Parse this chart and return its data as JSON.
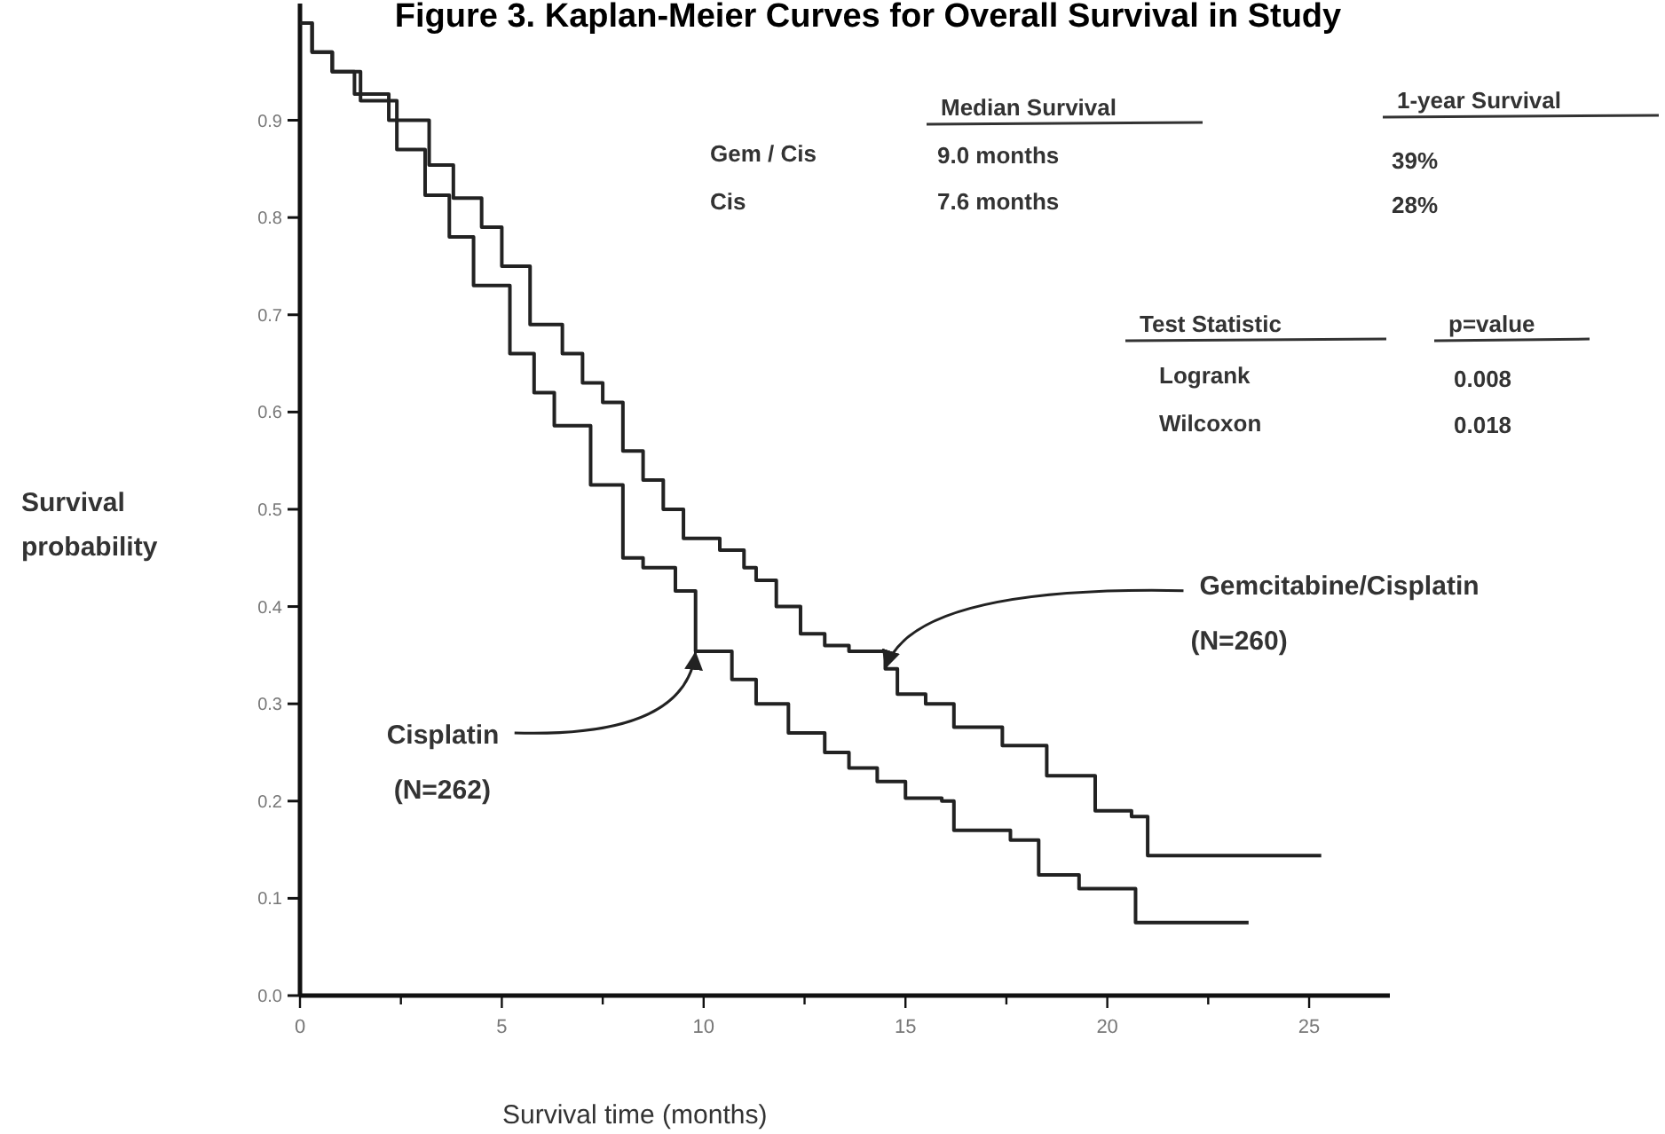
{
  "chart_data": {
    "type": "step",
    "title": "Figure 3. Kaplan-Meier Curves for Overall Survival in Study",
    "xlabel": "Survival time (months)",
    "ylabel": "Survival probability",
    "xlim": [
      0,
      27
    ],
    "ylim": [
      0,
      1.02
    ],
    "xticks": [
      0,
      {
        "value": 2.5,
        "label": null
      },
      5,
      {
        "value": 7.5,
        "label": null
      },
      10,
      {
        "value": 12.5,
        "label": null
      },
      15,
      {
        "value": 17.5,
        "label": null
      },
      20,
      {
        "value": 22.5,
        "label": null
      },
      25
    ],
    "yticks": [
      {
        "value": 0,
        "label": "0.0"
      },
      0.1,
      0.2,
      0.3,
      0.4,
      0.5,
      0.6,
      0.7,
      0.8,
      0.9
    ],
    "grid": false,
    "line_style": "solid",
    "marker": "none",
    "series": [
      {
        "color": "#222222",
        "x": [
          0,
          0.3,
          0.8,
          1.35,
          2.2,
          3.2,
          3.8,
          4.5,
          5.0,
          5.7,
          6.0,
          6.5,
          7.0,
          7.5,
          8.0,
          8.5,
          9.0,
          9.5,
          10.4,
          11.0,
          11.3,
          11.8,
          12.4,
          13.0,
          13.6,
          14.5,
          14.8,
          15.5,
          16.2,
          17.4,
          18.5,
          19.7,
          20.6,
          21.0,
          25.3
        ],
        "values": [
          1.0,
          0.97,
          0.95,
          0.927,
          0.9,
          0.854,
          0.82,
          0.79,
          0.75,
          0.69,
          0.69,
          0.66,
          0.63,
          0.61,
          0.56,
          0.53,
          0.5,
          0.47,
          0.458,
          0.44,
          0.427,
          0.4,
          0.372,
          0.36,
          0.354,
          0.336,
          0.31,
          0.3,
          0.276,
          0.257,
          0.226,
          0.19,
          0.184,
          0.144,
          0.144
        ]
      },
      {
        "color": "#222222",
        "x": [
          0,
          0.3,
          0.8,
          1.5,
          2.4,
          3.1,
          3.7,
          4.3,
          5.2,
          5.8,
          6.3,
          7.2,
          8.0,
          8.5,
          9.3,
          9.8,
          10.7,
          11.3,
          12.1,
          13.0,
          13.6,
          14.3,
          15.0,
          15.9,
          16.2,
          17.6,
          18.3,
          19.3,
          20.0,
          20.7,
          23.5
        ],
        "values": [
          1.0,
          0.97,
          0.95,
          0.92,
          0.87,
          0.823,
          0.78,
          0.73,
          0.66,
          0.62,
          0.586,
          0.525,
          0.45,
          0.44,
          0.416,
          0.354,
          0.325,
          0.3,
          0.27,
          0.25,
          0.234,
          0.22,
          0.203,
          0.2,
          0.17,
          0.16,
          0.124,
          0.11,
          0.11,
          0.075,
          0.075
        ]
      }
    ],
    "annotations": [
      {
        "text": "Gemcitabine/Cisplatin\n(N=260)",
        "x": 14.5,
        "y": 0.336
      },
      {
        "text": "Cisplatin\n(N=262)",
        "x": 9.8,
        "y": 0.354
      },
      "Median Survival",
      "1-year Survival",
      "Gem / Cis",
      "9.0 months",
      "39%",
      "Cis",
      "7.6 months",
      "28%",
      "Test Statistic",
      "p=value",
      "Logrank",
      "0.008",
      "Wilcoxon",
      "0.018"
    ]
  }
}
